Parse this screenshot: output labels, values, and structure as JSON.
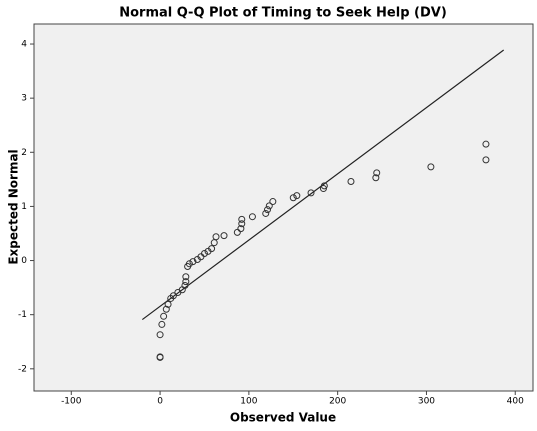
{
  "chart_data": {
    "type": "scatter",
    "title": "Normal Q-Q Plot of Timing to Seek Help (DV)",
    "xlabel": "Observed Value",
    "ylabel": "Expected Normal",
    "x": [
      0,
      0,
      0,
      2,
      4,
      7,
      9,
      12,
      15,
      20,
      25,
      28,
      29,
      29,
      31,
      33,
      37,
      42,
      46,
      50,
      54,
      58,
      61,
      63,
      72,
      87,
      91,
      92,
      92,
      104,
      119,
      121,
      123,
      127,
      150,
      154,
      170,
      184,
      185,
      215,
      243,
      244,
      305,
      367,
      367
    ],
    "values": [
      -1.78,
      -1.79,
      -1.37,
      -1.18,
      -1.03,
      -0.9,
      -0.81,
      -0.7,
      -0.65,
      -0.59,
      -0.54,
      -0.46,
      -0.39,
      -0.3,
      -0.11,
      -0.06,
      -0.02,
      0.02,
      0.07,
      0.13,
      0.17,
      0.22,
      0.33,
      0.44,
      0.46,
      0.52,
      0.59,
      0.68,
      0.76,
      0.81,
      0.87,
      0.94,
      1.01,
      1.09,
      1.16,
      1.2,
      1.25,
      1.33,
      1.38,
      1.46,
      1.53,
      1.62,
      1.73,
      1.86,
      2.15
    ],
    "marker_color": "#333333",
    "reference_line": {
      "x": [
        -20,
        387
      ],
      "y": [
        -1.09,
        3.89
      ],
      "color": "#222222"
    },
    "xlim": [
      -142,
      420
    ],
    "xticks": [
      -100,
      0,
      100,
      200,
      300,
      400
    ],
    "ylim": [
      -2.41,
      4.37
    ],
    "yticks": [
      -2,
      -1,
      0,
      1,
      2,
      3,
      4
    ],
    "grid": false
  }
}
